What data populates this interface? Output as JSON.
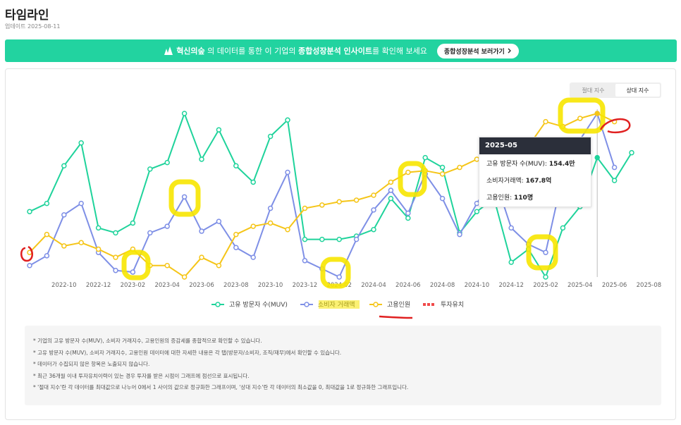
{
  "header": {
    "title": "타임라인",
    "updated": "업데이트 2025-08-11"
  },
  "banner": {
    "logo": "혁신의숲",
    "text1": "의 데이터를 통한 이 기업의",
    "emphasis": "종합성장분석 인사이트",
    "text2": "를 확인해 보세요",
    "button": "종합성장분석 보러가기"
  },
  "toggle": {
    "options": [
      "절대 지수",
      "상대 지수"
    ],
    "active": 1
  },
  "chart_data": {
    "type": "line",
    "ylim": [
      0,
      1
    ],
    "categories": [
      null,
      null,
      "2022-10",
      null,
      "2022-12",
      null,
      "2023-02",
      null,
      "2023-04",
      null,
      "2023-06",
      null,
      "2023-08",
      null,
      "2023-10",
      null,
      "2023-12",
      null,
      "2024-02",
      null,
      "2024-04",
      null,
      "2024-06",
      null,
      "2024-08",
      null,
      "2024-10",
      null,
      "2024-12",
      null,
      "2025-02",
      null,
      "2025-04",
      null,
      "2025-06",
      null,
      "2025-08"
    ],
    "series": [
      {
        "name": "고유 방문자 수(MUV)",
        "color": "#1fd39b",
        "values": [
          0.4,
          0.45,
          0.68,
          0.82,
          0.3,
          0.27,
          0.33,
          0.66,
          0.7,
          1.0,
          0.72,
          0.9,
          0.68,
          0.58,
          0.86,
          0.96,
          0.23,
          0.23,
          0.23,
          0.25,
          0.29,
          0.48,
          0.36,
          0.73,
          0.67,
          0.27,
          0.4,
          0.48,
          0.09,
          0.17,
          0,
          0.3,
          0.43,
          0.73,
          0.59,
          0.76,
          null
        ]
      },
      {
        "name": "소비자 거래액",
        "color": "#7e8fe6",
        "values": [
          0.07,
          0.13,
          0.38,
          0.45,
          0.15,
          0.04,
          0.03,
          0.27,
          0.31,
          0.49,
          0.28,
          0.34,
          0.18,
          0.12,
          0.42,
          0.64,
          0.1,
          0.05,
          0,
          0.23,
          0.41,
          0.53,
          0.39,
          0.63,
          0.48,
          0.26,
          0.45,
          0.62,
          0.3,
          0.2,
          0.15,
          0.62,
          0.84,
          1.0,
          0.67,
          null,
          null
        ]
      },
      {
        "name": "고용인원",
        "color": "#f5c518",
        "values": [
          0.15,
          0.26,
          0.19,
          0.21,
          0.17,
          0.12,
          0.17,
          0.07,
          0.07,
          0,
          0.12,
          0.07,
          0.26,
          0.31,
          0.33,
          0.29,
          0.42,
          0.44,
          0.46,
          0.47,
          0.5,
          0.58,
          0.64,
          0.65,
          0.63,
          0.67,
          0.72,
          0.73,
          0.77,
          0.8,
          0.95,
          0.92,
          0.97,
          1.0,
          0.95,
          null,
          null
        ]
      },
      {
        "name": "투자유치",
        "color": "#f04a4a",
        "dashed": true,
        "values": [
          null,
          null,
          null,
          null,
          null,
          null,
          null,
          null,
          null,
          null,
          null,
          null,
          null,
          null,
          null,
          null,
          null,
          null,
          null,
          null,
          null,
          null,
          null,
          null,
          null,
          null,
          null,
          null,
          null,
          null,
          null,
          null,
          null,
          null,
          null,
          null,
          null
        ]
      }
    ],
    "hover_index": 33
  },
  "tooltip": {
    "title": "2025-05",
    "rows": [
      {
        "label": "고유 방문자 수(MUV):",
        "value": "154.4만"
      },
      {
        "label": "소비자거래액:",
        "value": "167.8억"
      },
      {
        "label": "고용인원:",
        "value": "110명"
      }
    ]
  },
  "notes": [
    "* 기업의 고유 방문자 수(MUV), 소비자 거래지수, 고용인원의 증감세를 종합적으로 확인할 수 있습니다.",
    "* 고유 방문자 수(MUV), 소비자 거래지수, 고용인원 데이터에 대한 자세한 내용은 각 탭(방문자/소비자, 조직/재무)에서 확인할 수 있습니다.",
    "* 데이터가 수집되지 않은 항목은 노출되지 않습니다.",
    "* 최근 36개월 이내 투자유치이력이 있는 경우 투자를 받은 시점이 그래프에 점선으로 표시됩니다.",
    "* '절대 지수'란 각 데이터를 최대값으로 나누어 0에서 1 사이의 값으로 정규화한 그래프이며, '상대 지수'란 각 데이터의 최소값을 0, 최대값을 1로 정규화한 그래프입니다."
  ]
}
